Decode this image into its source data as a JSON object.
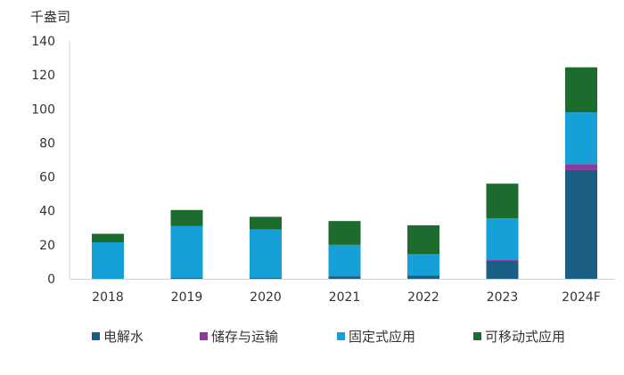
{
  "chart_data": {
    "type": "bar",
    "stacked": true,
    "unit_label": "千盎司",
    "categories": [
      "2018",
      "2019",
      "2020",
      "2021",
      "2022",
      "2023",
      "2024F"
    ],
    "series": [
      {
        "name": "电解水",
        "color": "#1a5e83",
        "values": [
          0,
          0.5,
          0.5,
          1.5,
          2,
          10.5,
          64
        ]
      },
      {
        "name": "储存与运输",
        "color": "#8e3a9b",
        "values": [
          0,
          0,
          0,
          0,
          0,
          0.5,
          3.5
        ]
      },
      {
        "name": "固定式应用",
        "color": "#16a0d8",
        "values": [
          21.5,
          30.5,
          28.5,
          18.5,
          12.5,
          24.5,
          30.5
        ]
      },
      {
        "name": "可移动式应用",
        "color": "#1e6c2d",
        "values": [
          5,
          9.5,
          7.5,
          14,
          17,
          20.5,
          26.5
        ]
      }
    ],
    "ylim": [
      0,
      140
    ],
    "yticks": [
      0,
      20,
      40,
      60,
      80,
      100,
      120,
      140
    ],
    "grid": false,
    "legend_position": "bottom"
  }
}
